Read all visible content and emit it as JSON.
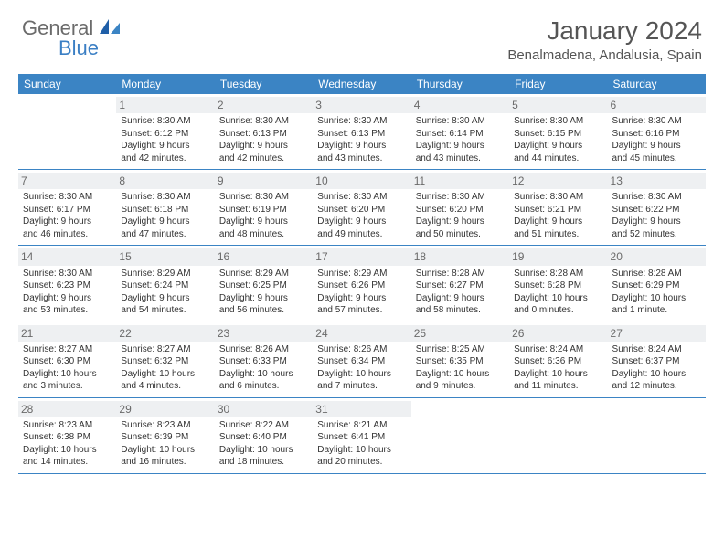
{
  "brand": {
    "part1": "General",
    "part2": "Blue"
  },
  "title": "January 2024",
  "location": "Benalmadena, Andalusia, Spain",
  "colors": {
    "header_bg": "#3b84c4",
    "accent": "#3b7fc4",
    "text": "#333333",
    "muted": "#6a6a6a",
    "daynum_bg": "#eef0f2"
  },
  "dayNames": [
    "Sunday",
    "Monday",
    "Tuesday",
    "Wednesday",
    "Thursday",
    "Friday",
    "Saturday"
  ],
  "weeks": [
    [
      {
        "empty": true
      },
      {
        "n": "1",
        "sr": "Sunrise: 8:30 AM",
        "ss": "Sunset: 6:12 PM",
        "d1": "Daylight: 9 hours",
        "d2": "and 42 minutes."
      },
      {
        "n": "2",
        "sr": "Sunrise: 8:30 AM",
        "ss": "Sunset: 6:13 PM",
        "d1": "Daylight: 9 hours",
        "d2": "and 42 minutes."
      },
      {
        "n": "3",
        "sr": "Sunrise: 8:30 AM",
        "ss": "Sunset: 6:13 PM",
        "d1": "Daylight: 9 hours",
        "d2": "and 43 minutes."
      },
      {
        "n": "4",
        "sr": "Sunrise: 8:30 AM",
        "ss": "Sunset: 6:14 PM",
        "d1": "Daylight: 9 hours",
        "d2": "and 43 minutes."
      },
      {
        "n": "5",
        "sr": "Sunrise: 8:30 AM",
        "ss": "Sunset: 6:15 PM",
        "d1": "Daylight: 9 hours",
        "d2": "and 44 minutes."
      },
      {
        "n": "6",
        "sr": "Sunrise: 8:30 AM",
        "ss": "Sunset: 6:16 PM",
        "d1": "Daylight: 9 hours",
        "d2": "and 45 minutes."
      }
    ],
    [
      {
        "n": "7",
        "sr": "Sunrise: 8:30 AM",
        "ss": "Sunset: 6:17 PM",
        "d1": "Daylight: 9 hours",
        "d2": "and 46 minutes."
      },
      {
        "n": "8",
        "sr": "Sunrise: 8:30 AM",
        "ss": "Sunset: 6:18 PM",
        "d1": "Daylight: 9 hours",
        "d2": "and 47 minutes."
      },
      {
        "n": "9",
        "sr": "Sunrise: 8:30 AM",
        "ss": "Sunset: 6:19 PM",
        "d1": "Daylight: 9 hours",
        "d2": "and 48 minutes."
      },
      {
        "n": "10",
        "sr": "Sunrise: 8:30 AM",
        "ss": "Sunset: 6:20 PM",
        "d1": "Daylight: 9 hours",
        "d2": "and 49 minutes."
      },
      {
        "n": "11",
        "sr": "Sunrise: 8:30 AM",
        "ss": "Sunset: 6:20 PM",
        "d1": "Daylight: 9 hours",
        "d2": "and 50 minutes."
      },
      {
        "n": "12",
        "sr": "Sunrise: 8:30 AM",
        "ss": "Sunset: 6:21 PM",
        "d1": "Daylight: 9 hours",
        "d2": "and 51 minutes."
      },
      {
        "n": "13",
        "sr": "Sunrise: 8:30 AM",
        "ss": "Sunset: 6:22 PM",
        "d1": "Daylight: 9 hours",
        "d2": "and 52 minutes."
      }
    ],
    [
      {
        "n": "14",
        "sr": "Sunrise: 8:30 AM",
        "ss": "Sunset: 6:23 PM",
        "d1": "Daylight: 9 hours",
        "d2": "and 53 minutes."
      },
      {
        "n": "15",
        "sr": "Sunrise: 8:29 AM",
        "ss": "Sunset: 6:24 PM",
        "d1": "Daylight: 9 hours",
        "d2": "and 54 minutes."
      },
      {
        "n": "16",
        "sr": "Sunrise: 8:29 AM",
        "ss": "Sunset: 6:25 PM",
        "d1": "Daylight: 9 hours",
        "d2": "and 56 minutes."
      },
      {
        "n": "17",
        "sr": "Sunrise: 8:29 AM",
        "ss": "Sunset: 6:26 PM",
        "d1": "Daylight: 9 hours",
        "d2": "and 57 minutes."
      },
      {
        "n": "18",
        "sr": "Sunrise: 8:28 AM",
        "ss": "Sunset: 6:27 PM",
        "d1": "Daylight: 9 hours",
        "d2": "and 58 minutes."
      },
      {
        "n": "19",
        "sr": "Sunrise: 8:28 AM",
        "ss": "Sunset: 6:28 PM",
        "d1": "Daylight: 10 hours",
        "d2": "and 0 minutes."
      },
      {
        "n": "20",
        "sr": "Sunrise: 8:28 AM",
        "ss": "Sunset: 6:29 PM",
        "d1": "Daylight: 10 hours",
        "d2": "and 1 minute."
      }
    ],
    [
      {
        "n": "21",
        "sr": "Sunrise: 8:27 AM",
        "ss": "Sunset: 6:30 PM",
        "d1": "Daylight: 10 hours",
        "d2": "and 3 minutes."
      },
      {
        "n": "22",
        "sr": "Sunrise: 8:27 AM",
        "ss": "Sunset: 6:32 PM",
        "d1": "Daylight: 10 hours",
        "d2": "and 4 minutes."
      },
      {
        "n": "23",
        "sr": "Sunrise: 8:26 AM",
        "ss": "Sunset: 6:33 PM",
        "d1": "Daylight: 10 hours",
        "d2": "and 6 minutes."
      },
      {
        "n": "24",
        "sr": "Sunrise: 8:26 AM",
        "ss": "Sunset: 6:34 PM",
        "d1": "Daylight: 10 hours",
        "d2": "and 7 minutes."
      },
      {
        "n": "25",
        "sr": "Sunrise: 8:25 AM",
        "ss": "Sunset: 6:35 PM",
        "d1": "Daylight: 10 hours",
        "d2": "and 9 minutes."
      },
      {
        "n": "26",
        "sr": "Sunrise: 8:24 AM",
        "ss": "Sunset: 6:36 PM",
        "d1": "Daylight: 10 hours",
        "d2": "and 11 minutes."
      },
      {
        "n": "27",
        "sr": "Sunrise: 8:24 AM",
        "ss": "Sunset: 6:37 PM",
        "d1": "Daylight: 10 hours",
        "d2": "and 12 minutes."
      }
    ],
    [
      {
        "n": "28",
        "sr": "Sunrise: 8:23 AM",
        "ss": "Sunset: 6:38 PM",
        "d1": "Daylight: 10 hours",
        "d2": "and 14 minutes."
      },
      {
        "n": "29",
        "sr": "Sunrise: 8:23 AM",
        "ss": "Sunset: 6:39 PM",
        "d1": "Daylight: 10 hours",
        "d2": "and 16 minutes."
      },
      {
        "n": "30",
        "sr": "Sunrise: 8:22 AM",
        "ss": "Sunset: 6:40 PM",
        "d1": "Daylight: 10 hours",
        "d2": "and 18 minutes."
      },
      {
        "n": "31",
        "sr": "Sunrise: 8:21 AM",
        "ss": "Sunset: 6:41 PM",
        "d1": "Daylight: 10 hours",
        "d2": "and 20 minutes."
      },
      {
        "empty": true
      },
      {
        "empty": true
      },
      {
        "empty": true
      }
    ]
  ]
}
